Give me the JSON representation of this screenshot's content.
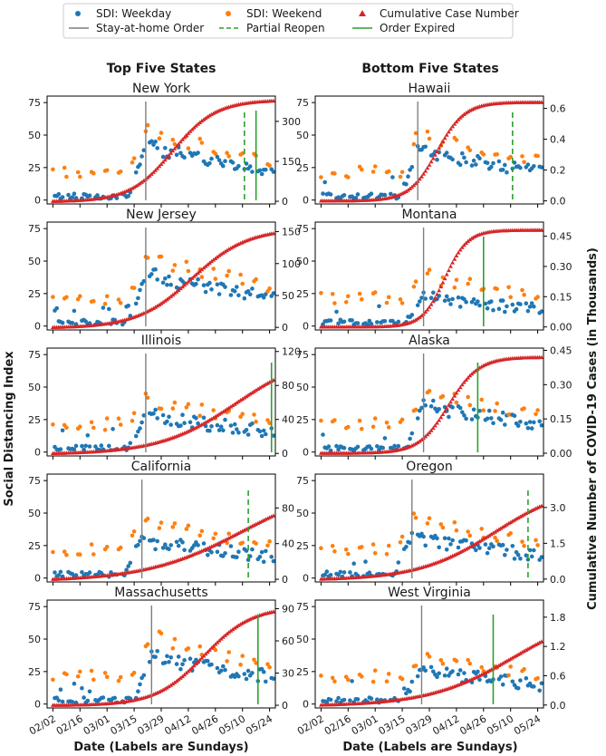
{
  "chart_data": {
    "type": "scatter",
    "legend": {
      "placement": "top-center",
      "entries": [
        {
          "key": "weekday",
          "label": "SDI: Weekday",
          "marker": "circle",
          "color": "#1f77b4"
        },
        {
          "key": "weekend",
          "label": "SDI: Weekend",
          "marker": "circle",
          "color": "#ff7f0e"
        },
        {
          "key": "cases",
          "label": "Cumulative Case Number",
          "marker": "triangle",
          "color": "#d62728"
        },
        {
          "key": "stay",
          "label": "Stay-at-home Order",
          "line": "solid",
          "color": "#7f7f7f"
        },
        {
          "key": "partial",
          "label": "Partial Reopen",
          "line": "dashed",
          "color": "#2ca02c"
        },
        {
          "key": "expired",
          "label": "Order Expired",
          "line": "solid",
          "color": "#2ca02c"
        }
      ]
    },
    "column_titles": [
      "Top Five States",
      "Bottom Five States"
    ],
    "ylabel_left": "Social Distancing Index",
    "ylabel_right": "Cumulative Number of COVID-19 Cases (in Thousands)",
    "xlabel": "Date (Labels are Sundays)",
    "x_tick_labels": [
      "02/02",
      "02/16",
      "03/01",
      "03/15",
      "03/29",
      "04/12",
      "04/26",
      "05/10",
      "05/24"
    ],
    "x_tick_days": [
      0,
      14,
      28,
      42,
      56,
      70,
      84,
      98,
      112
    ],
    "x_range_days": [
      -3,
      115
    ],
    "sdi_range": [
      -3,
      80
    ],
    "sdi_ticks": [
      0,
      25,
      50,
      75
    ],
    "panels": [
      {
        "state": "New York",
        "col": 0,
        "row": 0,
        "cases_max": 380,
        "cases_range": [
          -10,
          395
        ],
        "cases_ticks": [
          0,
          150,
          300
        ],
        "cases_tick_labels": [
          "0",
          "150",
          "300"
        ],
        "stay_day": 48,
        "partial_day": 99,
        "expired_day": 105,
        "weekday_level": 40,
        "weekend_level": 52,
        "midpoint_day": 62,
        "steepness": 0.09
      },
      {
        "state": "New Jersey",
        "col": 0,
        "row": 1,
        "cases_max": 155,
        "cases_range": [
          -4,
          165
        ],
        "cases_ticks": [
          0,
          50,
          100,
          150
        ],
        "cases_tick_labels": [
          "0",
          "50",
          "100",
          "150"
        ],
        "stay_day": 48,
        "partial_day": null,
        "expired_day": null,
        "weekday_level": 38,
        "weekend_level": 52,
        "midpoint_day": 72,
        "steepness": 0.07
      },
      {
        "state": "Illinois",
        "col": 0,
        "row": 2,
        "cases_max": 120,
        "cases_range": [
          -3,
          124
        ],
        "cases_ticks": [
          0,
          40,
          80,
          120
        ],
        "cases_tick_labels": [
          "0",
          "40",
          "80",
          "120"
        ],
        "stay_day": 48,
        "partial_day": null,
        "expired_day": 113,
        "weekday_level": 27,
        "weekend_level": 40,
        "midpoint_day": 95,
        "steepness": 0.05
      },
      {
        "state": "California",
        "col": 0,
        "row": 3,
        "cases_max": 110,
        "cases_range": [
          -3,
          118
        ],
        "cases_ticks": [
          0,
          40,
          80
        ],
        "cases_tick_labels": [
          "0",
          "40",
          "80"
        ],
        "stay_day": 46,
        "partial_day": 101,
        "expired_day": null,
        "weekday_level": 28,
        "weekend_level": 42,
        "midpoint_day": 98,
        "steepness": 0.04
      },
      {
        "state": "Massachusetts",
        "col": 0,
        "row": 4,
        "cases_max": 92,
        "cases_range": [
          -2.5,
          98
        ],
        "cases_ticks": [
          0,
          30,
          60,
          90
        ],
        "cases_tick_labels": [
          "0",
          "30",
          "60",
          "90"
        ],
        "stay_day": 51,
        "partial_day": null,
        "expired_day": 106,
        "weekday_level": 35,
        "weekend_level": 50,
        "midpoint_day": 78,
        "steepness": 0.08
      },
      {
        "state": "Hawaii",
        "col": 1,
        "row": 0,
        "cases_max": 0.64,
        "cases_range": [
          -0.02,
          0.68
        ],
        "cases_ticks": [
          0,
          0.2,
          0.4,
          0.6
        ],
        "cases_tick_labels": [
          "0.0",
          "0.2",
          "0.4",
          "0.6"
        ],
        "stay_day": 50,
        "partial_day": 99,
        "expired_day": null,
        "weekday_level": 37,
        "weekend_level": 50,
        "midpoint_day": 60,
        "steepness": 0.14
      },
      {
        "state": "Montana",
        "col": 1,
        "row": 1,
        "cases_max": 0.48,
        "cases_range": [
          -0.015,
          0.52
        ],
        "cases_ticks": [
          0,
          0.15,
          0.3,
          0.45
        ],
        "cases_tick_labels": [
          "0.00",
          "0.15",
          "0.30",
          "0.45"
        ],
        "stay_day": 53,
        "partial_day": null,
        "expired_day": 84,
        "weekday_level": 20,
        "weekend_level": 38,
        "midpoint_day": 64,
        "steepness": 0.17
      },
      {
        "state": "Alaska",
        "col": 1,
        "row": 2,
        "cases_max": 0.42,
        "cases_range": [
          -0.012,
          0.46
        ],
        "cases_ticks": [
          0,
          0.15,
          0.3,
          0.45
        ],
        "cases_tick_labels": [
          "0.00",
          "0.15",
          "0.30",
          "0.45"
        ],
        "stay_day": 53,
        "partial_day": null,
        "expired_day": 81,
        "weekday_level": 35,
        "weekend_level": 45,
        "midpoint_day": 66,
        "steepness": 0.13
      },
      {
        "state": "Oregon",
        "col": 1,
        "row": 3,
        "cases_max": 4.0,
        "cases_range": [
          -0.12,
          4.4
        ],
        "cases_ticks": [
          0,
          1.5,
          3.0
        ],
        "cases_tick_labels": [
          "0.0",
          "1.5",
          "3.0"
        ],
        "stay_day": 47,
        "partial_day": 107,
        "expired_day": null,
        "weekday_level": 30,
        "weekend_level": 45,
        "midpoint_day": 90,
        "steepness": 0.05
      },
      {
        "state": "West Virginia",
        "col": 1,
        "row": 4,
        "cases_max": 2.0,
        "cases_range": [
          -0.06,
          2.15
        ],
        "cases_ticks": [
          0,
          0.6,
          1.2,
          1.8
        ],
        "cases_tick_labels": [
          "0.0",
          "0.6",
          "1.2",
          "1.8"
        ],
        "stay_day": 52,
        "partial_day": null,
        "expired_day": 89,
        "weekday_level": 25,
        "weekend_level": 35,
        "midpoint_day": 100,
        "steepness": 0.045
      }
    ]
  }
}
